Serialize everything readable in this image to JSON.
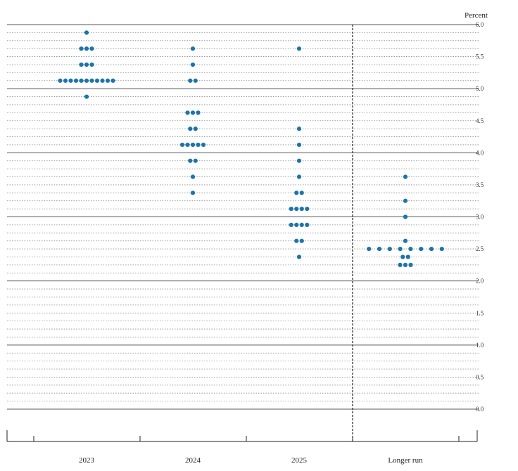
{
  "chart_data": {
    "type": "scatter",
    "ylabel": "Percent",
    "ylim": [
      -0.25,
      6.0
    ],
    "y_ticks": [
      "0.0",
      "0.5",
      "1.0",
      "1.5",
      "2.0",
      "2.5",
      "3.0",
      "3.5",
      "4.0",
      "4.5",
      "5.0",
      "5.5",
      "6.0"
    ],
    "categories": [
      "2023",
      "2024",
      "2025",
      "Longer run"
    ],
    "dot_color": "#1b75a8",
    "grid": true,
    "series": [
      {
        "category": "2023",
        "points": [
          {
            "y": 5.875,
            "count": 1
          },
          {
            "y": 5.625,
            "count": 3
          },
          {
            "y": 5.375,
            "count": 3
          },
          {
            "y": 5.125,
            "count": 11
          },
          {
            "y": 4.875,
            "count": 1
          }
        ]
      },
      {
        "category": "2024",
        "points": [
          {
            "y": 5.625,
            "count": 1
          },
          {
            "y": 5.375,
            "count": 1
          },
          {
            "y": 5.125,
            "count": 2
          },
          {
            "y": 4.625,
            "count": 3
          },
          {
            "y": 4.375,
            "count": 2
          },
          {
            "y": 4.125,
            "count": 5
          },
          {
            "y": 3.875,
            "count": 2
          },
          {
            "y": 3.625,
            "count": 1
          },
          {
            "y": 3.375,
            "count": 1
          }
        ]
      },
      {
        "category": "2025",
        "points": [
          {
            "y": 5.625,
            "count": 1
          },
          {
            "y": 4.375,
            "count": 1
          },
          {
            "y": 4.125,
            "count": 1
          },
          {
            "y": 3.875,
            "count": 1
          },
          {
            "y": 3.625,
            "count": 1
          },
          {
            "y": 3.375,
            "count": 2
          },
          {
            "y": 3.125,
            "count": 4
          },
          {
            "y": 2.875,
            "count": 4
          },
          {
            "y": 2.625,
            "count": 2
          },
          {
            "y": 2.375,
            "count": 1
          }
        ]
      },
      {
        "category": "Longer run",
        "points": [
          {
            "y": 3.625,
            "count": 1
          },
          {
            "y": 3.25,
            "count": 1
          },
          {
            "y": 3.0,
            "count": 1
          },
          {
            "y": 2.625,
            "count": 1
          },
          {
            "y": 2.5,
            "count": 8
          },
          {
            "y": 2.375,
            "count": 2
          },
          {
            "y": 2.25,
            "count": 3
          }
        ]
      }
    ]
  }
}
